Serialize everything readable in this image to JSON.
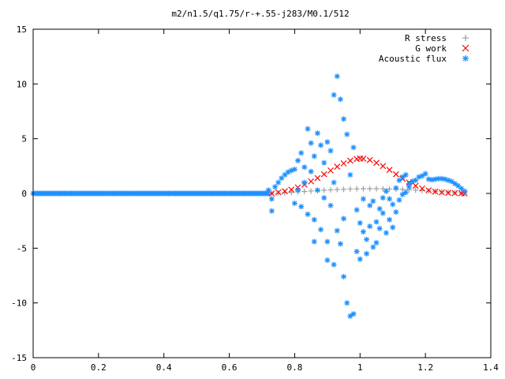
{
  "chart_data": {
    "type": "scatter",
    "title": "m2/n1.5/q1.75/r-+.55-j283/M0.1/512",
    "xlim": [
      0,
      1.4
    ],
    "ylim": [
      -15,
      15
    ],
    "x_ticks": [
      "0",
      "0.2",
      "0.4",
      "0.6",
      "0.8",
      "1",
      "1.2",
      "1.4"
    ],
    "y_ticks": [
      "15",
      "10",
      "5",
      "0",
      "-5",
      "-10",
      "-15"
    ],
    "legend_position": "top-right",
    "series": [
      {
        "name": "R stress",
        "marker": "+",
        "color": "#a0a0a0",
        "points": [
          [
            0.73,
            0.02
          ],
          [
            0.75,
            0.04
          ],
          [
            0.77,
            0.06
          ],
          [
            0.79,
            0.1
          ],
          [
            0.81,
            0.14
          ],
          [
            0.83,
            0.18
          ],
          [
            0.85,
            0.22
          ],
          [
            0.87,
            0.26
          ],
          [
            0.89,
            0.3
          ],
          [
            0.91,
            0.33
          ],
          [
            0.93,
            0.36
          ],
          [
            0.95,
            0.38
          ],
          [
            0.97,
            0.4
          ],
          [
            0.99,
            0.42
          ],
          [
            1.01,
            0.43
          ],
          [
            1.03,
            0.43
          ],
          [
            1.05,
            0.43
          ],
          [
            1.07,
            0.42
          ],
          [
            1.09,
            0.41
          ],
          [
            1.11,
            0.39
          ],
          [
            1.13,
            0.37
          ],
          [
            1.15,
            0.34
          ],
          [
            1.17,
            0.31
          ],
          [
            1.19,
            0.27
          ],
          [
            1.21,
            0.23
          ],
          [
            1.23,
            0.19
          ],
          [
            1.25,
            0.15
          ],
          [
            1.27,
            0.11
          ],
          [
            1.29,
            0.07
          ],
          [
            1.31,
            0.04
          ],
          [
            1.32,
            0.02
          ]
        ]
      },
      {
        "name": "G work",
        "marker": "x",
        "color": "#ff0000",
        "points": [
          [
            0.73,
            0.0
          ],
          [
            0.75,
            0.1
          ],
          [
            0.77,
            0.2
          ],
          [
            0.79,
            0.35
          ],
          [
            0.81,
            0.55
          ],
          [
            0.83,
            0.8
          ],
          [
            0.85,
            1.1
          ],
          [
            0.87,
            1.4
          ],
          [
            0.89,
            1.75
          ],
          [
            0.91,
            2.1
          ],
          [
            0.93,
            2.45
          ],
          [
            0.95,
            2.75
          ],
          [
            0.97,
            3.0
          ],
          [
            0.99,
            3.15
          ],
          [
            1.0,
            3.2
          ],
          [
            1.01,
            3.18
          ],
          [
            1.03,
            3.05
          ],
          [
            1.05,
            2.8
          ],
          [
            1.07,
            2.5
          ],
          [
            1.09,
            2.15
          ],
          [
            1.11,
            1.75
          ],
          [
            1.13,
            1.35
          ],
          [
            1.15,
            1.0
          ],
          [
            1.17,
            0.7
          ],
          [
            1.19,
            0.45
          ],
          [
            1.21,
            0.28
          ],
          [
            1.23,
            0.17
          ],
          [
            1.25,
            0.1
          ],
          [
            1.27,
            0.06
          ],
          [
            1.29,
            0.03
          ],
          [
            1.31,
            0.01
          ],
          [
            1.32,
            0.0
          ]
        ]
      },
      {
        "name": "Acoustic flux",
        "marker": "*",
        "color": "#1e90ff",
        "points": [
          [
            0.72,
            0.3
          ],
          [
            0.73,
            -0.5
          ],
          [
            0.73,
            -1.6
          ],
          [
            0.74,
            0.6
          ],
          [
            0.75,
            1.0
          ],
          [
            0.76,
            1.4
          ],
          [
            0.77,
            1.7
          ],
          [
            0.78,
            1.95
          ],
          [
            0.79,
            2.1
          ],
          [
            0.8,
            2.2
          ],
          [
            0.8,
            -0.9
          ],
          [
            0.81,
            3.0
          ],
          [
            0.81,
            0.3
          ],
          [
            0.82,
            3.7
          ],
          [
            0.82,
            -1.2
          ],
          [
            0.83,
            2.4
          ],
          [
            0.83,
            1.0
          ],
          [
            0.84,
            5.9
          ],
          [
            0.84,
            -1.9
          ],
          [
            0.85,
            4.6
          ],
          [
            0.85,
            2.0
          ],
          [
            0.86,
            3.4
          ],
          [
            0.86,
            -2.4
          ],
          [
            0.86,
            -4.4
          ],
          [
            0.87,
            5.5
          ],
          [
            0.87,
            0.3
          ],
          [
            0.88,
            4.4
          ],
          [
            0.88,
            -3.3
          ],
          [
            0.89,
            2.8
          ],
          [
            0.89,
            -0.4
          ],
          [
            0.9,
            4.7
          ],
          [
            0.9,
            -4.4
          ],
          [
            0.9,
            -6.1
          ],
          [
            0.91,
            3.9
          ],
          [
            0.91,
            -1.1
          ],
          [
            0.92,
            1.0
          ],
          [
            0.92,
            -6.5
          ],
          [
            0.92,
            9.0
          ],
          [
            0.93,
            10.7
          ],
          [
            0.93,
            -3.4
          ],
          [
            0.94,
            8.6
          ],
          [
            0.94,
            -4.6
          ],
          [
            0.95,
            6.8
          ],
          [
            0.95,
            -7.6
          ],
          [
            0.95,
            -2.3
          ],
          [
            0.96,
            5.4
          ],
          [
            0.96,
            -10.0
          ],
          [
            0.97,
            -11.2
          ],
          [
            0.97,
            1.7
          ],
          [
            0.98,
            -11.0
          ],
          [
            0.98,
            4.2
          ],
          [
            0.99,
            -5.3
          ],
          [
            0.99,
            -1.5
          ],
          [
            1.0,
            -2.7
          ],
          [
            1.0,
            -6.0
          ],
          [
            1.01,
            -3.5
          ],
          [
            1.01,
            -0.5
          ],
          [
            1.02,
            -4.2
          ],
          [
            1.02,
            -5.5
          ],
          [
            1.03,
            -1.1
          ],
          [
            1.03,
            -3.0
          ],
          [
            1.04,
            -4.9
          ],
          [
            1.04,
            -0.7
          ],
          [
            1.05,
            -2.6
          ],
          [
            1.05,
            -4.5
          ],
          [
            1.06,
            -1.4
          ],
          [
            1.06,
            -3.2
          ],
          [
            1.07,
            -0.4
          ],
          [
            1.07,
            -1.8
          ],
          [
            1.08,
            -3.6
          ],
          [
            1.08,
            0.2
          ],
          [
            1.09,
            -2.4
          ],
          [
            1.09,
            -0.5
          ],
          [
            1.1,
            -3.1
          ],
          [
            1.1,
            -1.0
          ],
          [
            1.11,
            -1.7
          ],
          [
            1.11,
            0.5
          ],
          [
            1.12,
            -0.6
          ],
          [
            1.12,
            1.2
          ],
          [
            1.13,
            -0.1
          ],
          [
            1.13,
            1.5
          ],
          [
            1.14,
            0.1
          ],
          [
            1.14,
            1.7
          ],
          [
            1.15,
            0.6
          ],
          [
            1.15,
            0.9
          ],
          [
            1.16,
            1.1
          ],
          [
            1.17,
            1.2
          ],
          [
            1.18,
            1.5
          ],
          [
            1.19,
            1.6
          ],
          [
            1.2,
            1.8
          ],
          [
            1.21,
            1.3
          ],
          [
            1.22,
            1.25
          ],
          [
            1.23,
            1.3
          ],
          [
            1.24,
            1.35
          ],
          [
            1.25,
            1.35
          ],
          [
            1.26,
            1.3
          ],
          [
            1.27,
            1.2
          ],
          [
            1.28,
            1.1
          ],
          [
            1.29,
            0.9
          ],
          [
            1.3,
            0.7
          ],
          [
            1.31,
            0.45
          ],
          [
            1.32,
            0.2
          ]
        ]
      }
    ]
  }
}
